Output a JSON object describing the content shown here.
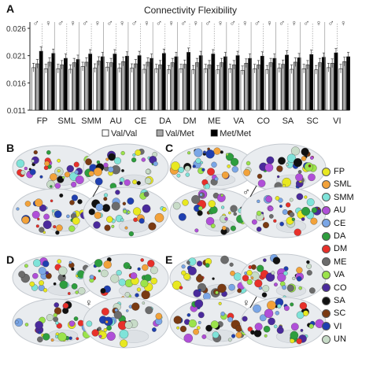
{
  "chart_data": {
    "type": "bar",
    "title": "Connectivity Flexibility",
    "panel": "A",
    "categories": [
      "FP",
      "SML",
      "SMM",
      "AU",
      "CE",
      "DA",
      "DM",
      "ME",
      "VA",
      "CO",
      "SA",
      "SC",
      "VI"
    ],
    "yticks": [
      "0.026",
      "0.021",
      "0.016",
      "0.011"
    ],
    "ylim": [
      0.011,
      0.026
    ],
    "legend": [
      "Val/Val",
      "Val/Met",
      "Met/Met"
    ],
    "series": [
      {
        "name": "Val/Val",
        "color": "#ffffff",
        "male": [
          0.0188,
          0.0186,
          0.019,
          0.0189,
          0.0187,
          0.0186,
          0.0186,
          0.0186,
          0.0186,
          0.0186,
          0.0187,
          0.0186,
          0.0188
        ],
        "female": [
          0.0186,
          0.0185,
          0.0187,
          0.0187,
          0.0185,
          0.0184,
          0.0184,
          0.0184,
          0.0183,
          0.0184,
          0.0185,
          0.0184,
          0.0186
        ]
      },
      {
        "name": "Val/Met",
        "color": "#a8a8a8",
        "male": [
          0.0195,
          0.0193,
          0.0198,
          0.0197,
          0.0195,
          0.0193,
          0.0194,
          0.0193,
          0.0193,
          0.0193,
          0.0194,
          0.0193,
          0.0196
        ],
        "female": [
          0.0198,
          0.0197,
          0.02,
          0.0199,
          0.0198,
          0.0197,
          0.0197,
          0.0197,
          0.0196,
          0.0197,
          0.0198,
          0.0197,
          0.0199
        ]
      },
      {
        "name": "Met/Met",
        "color": "#000000",
        "male": [
          0.0218,
          0.0205,
          0.0213,
          0.0213,
          0.021,
          0.0214,
          0.0216,
          0.0213,
          0.021,
          0.0209,
          0.0211,
          0.0212,
          0.0215
        ],
        "female": [
          0.0214,
          0.0203,
          0.0208,
          0.0209,
          0.0205,
          0.0208,
          0.021,
          0.0208,
          0.0205,
          0.0205,
          0.0206,
          0.0207,
          0.0208
        ]
      }
    ],
    "error": 0.0008
  },
  "panels": [
    {
      "label": "B",
      "symbol": "",
      "line": true
    },
    {
      "label": "C",
      "symbol": "♂",
      "line": true
    },
    {
      "label": "D",
      "symbol": "♀",
      "line": false
    },
    {
      "label": "E",
      "symbol": "♀",
      "line": true
    }
  ],
  "sex_symbols": {
    "male": "♂",
    "female": "♀"
  },
  "network_legend": [
    {
      "label": "FP",
      "color": "#e8e820"
    },
    {
      "label": "SML",
      "color": "#f2a23a"
    },
    {
      "label": "SMM",
      "color": "#7fe3d9"
    },
    {
      "label": "AU",
      "color": "#b04fd8"
    },
    {
      "label": "CE",
      "color": "#7aa6e6"
    },
    {
      "label": "DA",
      "color": "#2e9e3e"
    },
    {
      "label": "DM",
      "color": "#e8302a"
    },
    {
      "label": "ME",
      "color": "#6c6c6c"
    },
    {
      "label": "VA",
      "color": "#9be34b"
    },
    {
      "label": "CO",
      "color": "#4a2a9c"
    },
    {
      "label": "SA",
      "color": "#111111"
    },
    {
      "label": "SC",
      "color": "#7a3a12"
    },
    {
      "label": "VI",
      "color": "#1f3fb0"
    },
    {
      "label": "UN",
      "color": "#c8dcc8"
    }
  ]
}
